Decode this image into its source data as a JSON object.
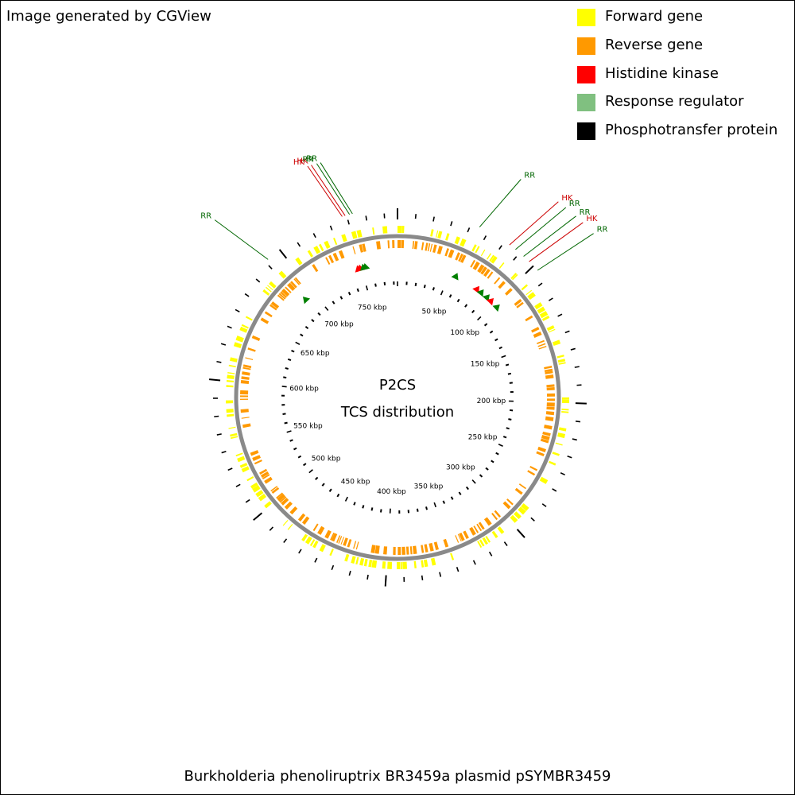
{
  "credit": "Image generated by CGView",
  "map_title": "P2CS",
  "map_subtitle": "TCS distribution",
  "organism": "Burkholderia phenoliruptrix BR3459a plasmid pSYMBR3459",
  "legend": [
    {
      "label": "Forward gene",
      "color": "#FFFF00"
    },
    {
      "label": "Reverse gene",
      "color": "#FF9900"
    },
    {
      "label": "Histidine kinase",
      "color": "#FF0000"
    },
    {
      "label": "Response regulator",
      "color": "#80C080"
    },
    {
      "label": "Phosphotransfer protein",
      "color": "#000000"
    }
  ],
  "map": {
    "total_kbp": 784,
    "tick_labels": [
      "50 kbp",
      "100 kbp",
      "150 kbp",
      "200 kbp",
      "250 kbp",
      "300 kbp",
      "350 kbp",
      "400 kbp",
      "450 kbp",
      "500 kbp",
      "550 kbp",
      "600 kbp",
      "650 kbp",
      "700 kbp",
      "750 kbp"
    ],
    "tick_label_kbp": [
      50,
      100,
      150,
      200,
      250,
      300,
      350,
      400,
      450,
      500,
      550,
      600,
      650,
      700,
      750
    ],
    "features": [
      {
        "label": "RR",
        "type": "RR",
        "kbp": 56
      },
      {
        "label": "HK",
        "type": "HK",
        "kbp": 79
      },
      {
        "label": "RR",
        "type": "RR",
        "kbp": 84
      },
      {
        "label": "RR",
        "type": "RR",
        "kbp": 91
      },
      {
        "label": "HK",
        "type": "HK",
        "kbp": 96
      },
      {
        "label": "RR",
        "type": "RR",
        "kbp": 104
      },
      {
        "label": "RR",
        "type": "RR",
        "kbp": 690
      },
      {
        "label": "HK",
        "type": "HK",
        "kbp": 747
      },
      {
        "label": "HK",
        "type": "HK",
        "kbp": 749
      },
      {
        "label": "RR",
        "type": "RR",
        "kbp": 752
      },
      {
        "label": "RR",
        "type": "RR",
        "kbp": 754
      }
    ],
    "label_colors": {
      "RR": "#006600",
      "HK": "#CC0000"
    },
    "marker_colors": {
      "RR": "#008000",
      "HK": "#FF0000"
    }
  }
}
